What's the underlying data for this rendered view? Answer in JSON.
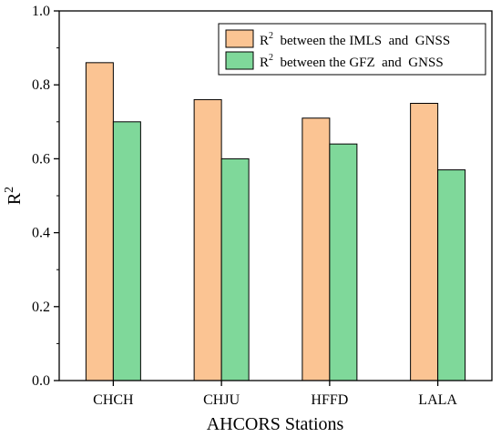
{
  "chart_data": {
    "type": "bar",
    "categories": [
      "CHCH",
      "CHJU",
      "HFFD",
      "LALA"
    ],
    "series": [
      {
        "name_prefix": "R",
        "name_sup": "2",
        "name_rest": "  between the IMLS  and  GNSS",
        "values": [
          0.86,
          0.76,
          0.71,
          0.75
        ],
        "color": "#FBC493"
      },
      {
        "name_prefix": "R",
        "name_sup": "2",
        "name_rest": "  between the GFZ  and  GNSS",
        "values": [
          0.7,
          0.6,
          0.64,
          0.57
        ],
        "color": "#7FD89A"
      }
    ],
    "xlabel": "AHCORS Stations",
    "ylabel_base": "R",
    "ylabel_sup": "2",
    "ylim": [
      0,
      1.0
    ],
    "yticks": [
      "0.0",
      "0.2",
      "0.4",
      "0.6",
      "0.8",
      "1.0"
    ],
    "ytick_values": [
      0,
      0.2,
      0.4,
      0.6,
      0.8,
      1.0
    ],
    "legend_position": "top-right",
    "grid": false
  }
}
